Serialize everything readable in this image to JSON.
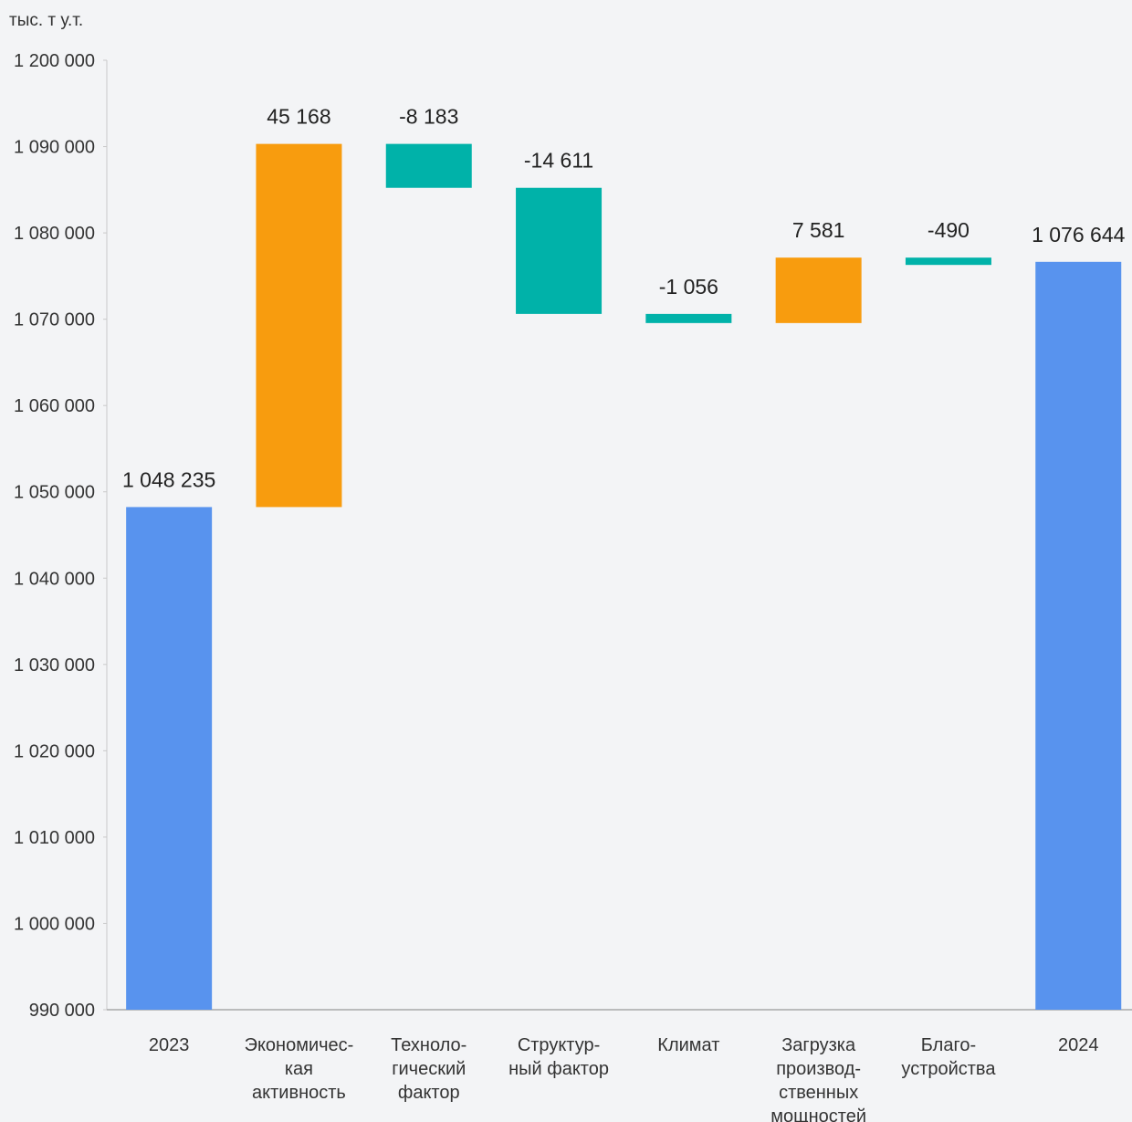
{
  "chart_data": {
    "type": "waterfall",
    "unit_label": "тыс. т у.т.",
    "ylim": [
      990000,
      1200000
    ],
    "yticks": [
      990000,
      1000000,
      1010000,
      1020000,
      1030000,
      1040000,
      1050000,
      1060000,
      1070000,
      1080000,
      1090000,
      1200000
    ],
    "ytick_labels": [
      "990 000",
      "1 000 000",
      "1 010 000",
      "1 020 000",
      "1 030 000",
      "1 040 000",
      "1 050 000",
      "1 060 000",
      "1 070 000",
      "1 080 000",
      "1 090 000",
      "1 200 000"
    ],
    "categories": [
      [
        "2023"
      ],
      [
        "Экономичес-",
        "кая",
        "активность"
      ],
      [
        "Техноло-",
        "гический",
        "фактор"
      ],
      [
        "Структур-",
        "ный фактор"
      ],
      [
        "Климат"
      ],
      [
        "Загрузка",
        "производ-",
        "ственных",
        "мощностей"
      ],
      [
        "Благо-",
        "устройства"
      ],
      [
        "2024"
      ]
    ],
    "bars": [
      {
        "kind": "total",
        "start": 990000,
        "end": 1048235,
        "label": "1 048 235"
      },
      {
        "kind": "delta",
        "start": 1048235,
        "end": 1093403,
        "label": "45 168"
      },
      {
        "kind": "delta",
        "start": 1093403,
        "end": 1085220,
        "label": "-8 183"
      },
      {
        "kind": "delta",
        "start": 1085220,
        "end": 1070609,
        "label": "-14 611"
      },
      {
        "kind": "delta",
        "start": 1070609,
        "end": 1069553,
        "label": "-1 056"
      },
      {
        "kind": "delta",
        "start": 1069553,
        "end": 1077134,
        "label": "7 581"
      },
      {
        "kind": "delta",
        "start": 1077134,
        "end": 1076644,
        "label": "-490"
      },
      {
        "kind": "total",
        "start": 990000,
        "end": 1076644,
        "label": "1 076 644"
      }
    ],
    "colors": {
      "total": "#5893ee",
      "increase": "#f89c0e",
      "decrease": "#00b2a9"
    },
    "grid": false,
    "legend": "none"
  }
}
